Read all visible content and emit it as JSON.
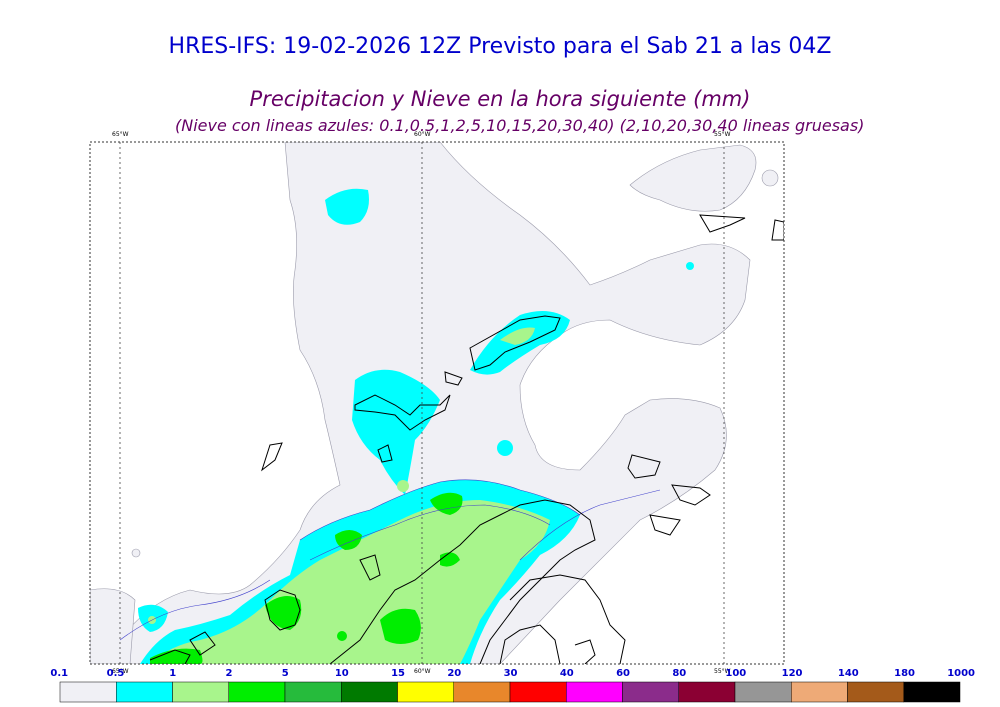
{
  "header": {
    "title": "HRES-IFS: 19-02-2026 12Z Previsto para el Sab 21 a las 04Z",
    "subtitle": "Precipitacion y Nieve en la hora siguiente (mm)",
    "subtitle2": "(Nieve con lineas azules: 0.1,0.5,1,2,5,10,15,20,30,40)  (2,10,20,30,40 lineas gruesas)"
  },
  "map": {
    "longitude_labels": [
      "65°W",
      "60°W",
      "55°W"
    ]
  },
  "legend": {
    "labels": [
      "0.1",
      "0.5",
      "1",
      "2",
      "5",
      "10",
      "15",
      "20",
      "30",
      "40",
      "60",
      "80",
      "100",
      "120",
      "140",
      "180",
      "1000"
    ],
    "colors": [
      "#f0f0f5",
      "#00ffff",
      "#a8f58c",
      "#00ee00",
      "#26bb3c",
      "#007a00",
      "#ffff00",
      "#e8872b",
      "#ff0000",
      "#ff00ff",
      "#8b2c8b",
      "#8b0033",
      "#969696",
      "#eeaa77",
      "#a45a1a",
      "#000000"
    ]
  }
}
